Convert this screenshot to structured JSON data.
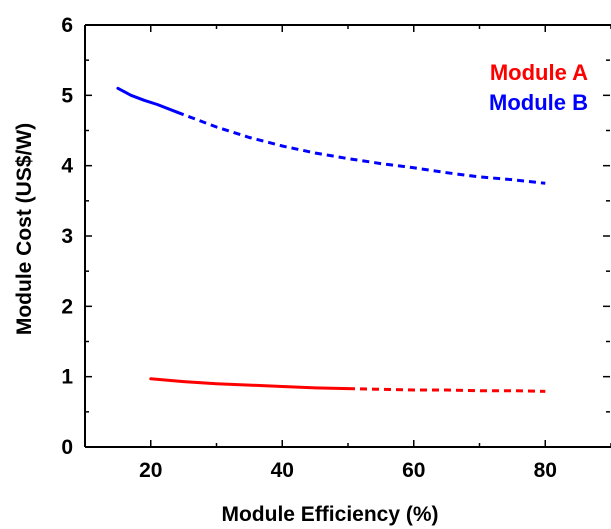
{
  "chart_data": {
    "type": "line",
    "xlabel": "Module Efficiency (%)",
    "ylabel": "Module Cost (US$/W)",
    "xlim": [
      10,
      90
    ],
    "ylim": [
      0,
      6
    ],
    "xticks": [
      "20",
      "40",
      "60",
      "80"
    ],
    "yticks": [
      "0",
      "1",
      "2",
      "3",
      "4",
      "5",
      "6"
    ],
    "grid": false,
    "legend_position": "top-right",
    "series": [
      {
        "name": "Module A",
        "color": "#ff0000",
        "solid": [
          [
            20,
            0.97
          ],
          [
            25,
            0.93
          ],
          [
            30,
            0.9
          ],
          [
            35,
            0.88
          ],
          [
            40,
            0.86
          ],
          [
            45,
            0.84
          ],
          [
            50,
            0.83
          ]
        ],
        "dashed": [
          [
            50,
            0.83
          ],
          [
            55,
            0.82
          ],
          [
            60,
            0.81
          ],
          [
            65,
            0.81
          ],
          [
            70,
            0.8
          ],
          [
            75,
            0.8
          ],
          [
            80,
            0.79
          ]
        ]
      },
      {
        "name": "Module B",
        "color": "#0000ff",
        "solid": [
          [
            15,
            5.1
          ],
          [
            17,
            5.0
          ],
          [
            19,
            4.93
          ],
          [
            21,
            4.87
          ],
          [
            24,
            4.76
          ]
        ],
        "dashed": [
          [
            24,
            4.76
          ],
          [
            30,
            4.55
          ],
          [
            35,
            4.4
          ],
          [
            40,
            4.28
          ],
          [
            45,
            4.18
          ],
          [
            50,
            4.1
          ],
          [
            55,
            4.03
          ],
          [
            60,
            3.97
          ],
          [
            65,
            3.9
          ],
          [
            70,
            3.84
          ],
          [
            75,
            3.8
          ],
          [
            80,
            3.75
          ]
        ]
      }
    ]
  }
}
